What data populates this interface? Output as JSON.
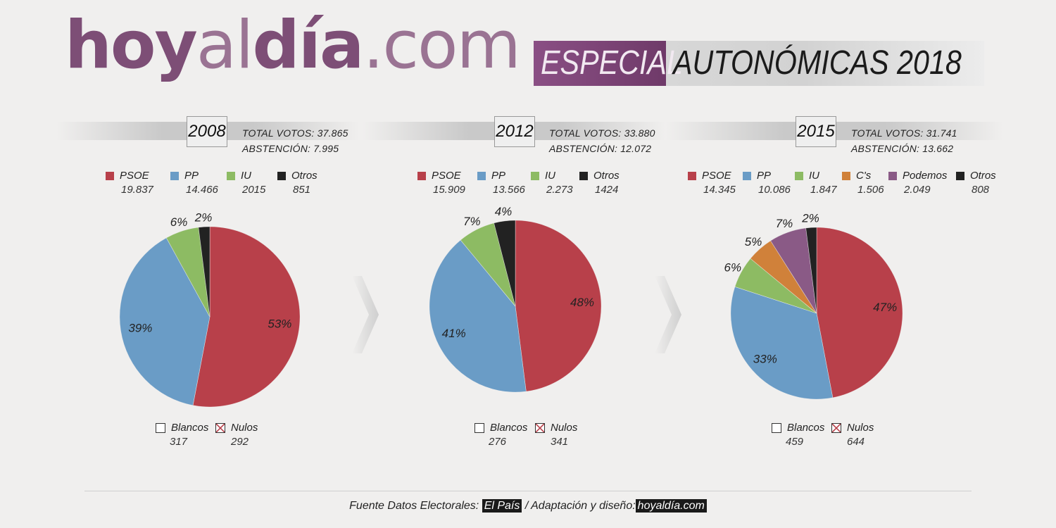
{
  "header": {
    "logo": "hoyaldía.com",
    "logo_parts": [
      "hoy",
      "al",
      "día",
      ".com"
    ],
    "special_label": "ESPECIAL",
    "title": "AUTONÓMICAS 2018"
  },
  "colors": {
    "PSOE": "#b8404a",
    "PP": "#6a9cc6",
    "IU": "#8dbb63",
    "C's": "#d0813a",
    "Podemos": "#8a5a86",
    "Otros": "#222222",
    "brand": "#7d4e76"
  },
  "chart_data": [
    {
      "type": "pie",
      "year": "2008",
      "total_votos": "TOTAL VOTOS: 37.865",
      "abstencion": "ABSTENCIÓN: 7.995",
      "legend": [
        {
          "name": "PSOE",
          "value": "19.837"
        },
        {
          "name": "PP",
          "value": "14.466"
        },
        {
          "name": "IU",
          "value": "2015"
        },
        {
          "name": "Otros",
          "value": "851"
        }
      ],
      "slices": [
        {
          "name": "PSOE",
          "value": 53,
          "label": "53%"
        },
        {
          "name": "PP",
          "value": 39,
          "label": "39%"
        },
        {
          "name": "IU",
          "value": 6,
          "label": "6%"
        },
        {
          "name": "Otros",
          "value": 2,
          "label": "2%"
        }
      ],
      "blancos": {
        "label": "Blancos",
        "value": "317"
      },
      "nulos": {
        "label": "Nulos",
        "value": "292"
      }
    },
    {
      "type": "pie",
      "year": "2012",
      "total_votos": "TOTAL VOTOS: 33.880",
      "abstencion": "ABSTENCIÓN: 12.072",
      "legend": [
        {
          "name": "PSOE",
          "value": "15.909"
        },
        {
          "name": "PP",
          "value": "13.566"
        },
        {
          "name": "IU",
          "value": "2.273"
        },
        {
          "name": "Otros",
          "value": "1424"
        }
      ],
      "slices": [
        {
          "name": "PSOE",
          "value": 48,
          "label": "48%"
        },
        {
          "name": "PP",
          "value": 41,
          "label": "41%"
        },
        {
          "name": "IU",
          "value": 7,
          "label": "7%"
        },
        {
          "name": "Otros",
          "value": 4,
          "label": "4%"
        }
      ],
      "blancos": {
        "label": "Blancos",
        "value": "276"
      },
      "nulos": {
        "label": "Nulos",
        "value": "341"
      }
    },
    {
      "type": "pie",
      "year": "2015",
      "total_votos": "TOTAL VOTOS: 31.741",
      "abstencion": "ABSTENCIÓN: 13.662",
      "legend": [
        {
          "name": "PSOE",
          "value": "14.345"
        },
        {
          "name": "PP",
          "value": "10.086"
        },
        {
          "name": "IU",
          "value": "1.847"
        },
        {
          "name": "C's",
          "value": "1.506"
        },
        {
          "name": "Podemos",
          "value": "2.049"
        },
        {
          "name": "Otros",
          "value": "808"
        }
      ],
      "slices": [
        {
          "name": "PSOE",
          "value": 47,
          "label": "47%"
        },
        {
          "name": "PP",
          "value": 33,
          "label": "33%"
        },
        {
          "name": "IU",
          "value": 6,
          "label": "6%"
        },
        {
          "name": "C's",
          "value": 5,
          "label": "5%"
        },
        {
          "name": "Podemos",
          "value": 7,
          "label": "7%"
        },
        {
          "name": "Otros",
          "value": 2,
          "label": "2%"
        }
      ],
      "blancos": {
        "label": "Blancos",
        "value": "459"
      },
      "nulos": {
        "label": "Nulos",
        "value": "644"
      }
    }
  ],
  "footer": {
    "source_prefix": "Fuente Datos Electorales:",
    "source": "El País",
    "design_prefix": "/ Adaptación y diseño:",
    "designer": "hoyaldía.com"
  }
}
